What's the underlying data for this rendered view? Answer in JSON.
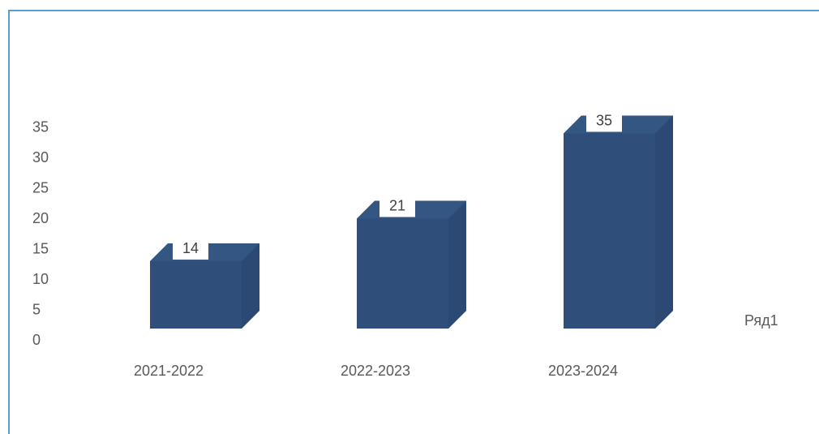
{
  "chart_data": {
    "type": "bar",
    "categories": [
      "2021-2022",
      "2022-2023",
      "2023-2024"
    ],
    "series": [
      {
        "name": "Ряд1",
        "values": [
          14,
          21,
          35
        ]
      }
    ],
    "yticks": [
      0,
      5,
      10,
      15,
      20,
      25,
      30,
      35
    ],
    "ylim": [
      0,
      40
    ],
    "grid": false,
    "legend": "right",
    "bar_style": "3d",
    "colors": {
      "bar": "#2f4f7a",
      "bar_top": "#3a5d8c",
      "bar_side": "#27436b",
      "frame": "#5b9bd5"
    }
  }
}
